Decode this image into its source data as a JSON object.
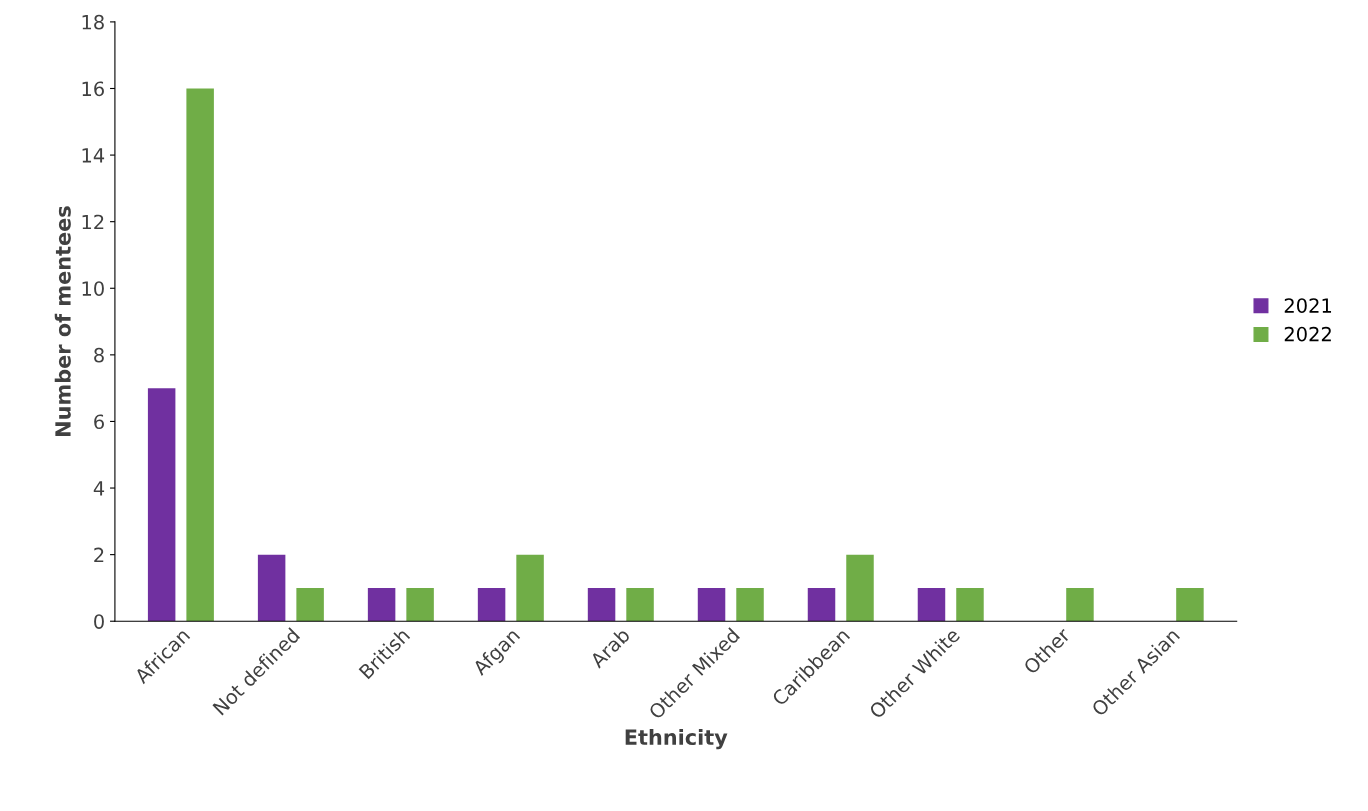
{
  "chart_data": {
    "type": "bar",
    "xlabel": "Ethnicity",
    "ylabel": "Number of mentees",
    "categories": [
      "African",
      "Not defined",
      "British",
      "Afgan",
      "Arab",
      "Other Mixed",
      "Caribbean",
      "Other White",
      "Other",
      "Other Asian"
    ],
    "series": [
      {
        "name": "2021",
        "color": "#7030a0",
        "values": [
          7,
          2,
          1,
          1,
          1,
          1,
          1,
          1,
          0,
          0
        ]
      },
      {
        "name": "2022",
        "color": "#70ad47",
        "values": [
          16,
          1,
          1,
          2,
          1,
          1,
          2,
          1,
          1,
          1
        ]
      }
    ],
    "ylim": [
      0,
      18
    ],
    "yticks": [
      0,
      2,
      4,
      6,
      8,
      10,
      12,
      14,
      16,
      18
    ],
    "grid": false,
    "legend": "right"
  }
}
